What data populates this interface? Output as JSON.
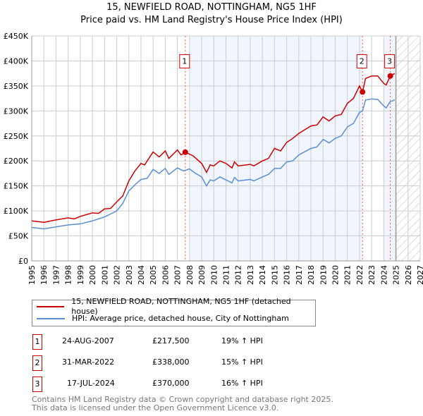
{
  "chart_data": {
    "type": "line",
    "title": "15, NEWFIELD ROAD, NOTTINGHAM, NG5 1HF",
    "subtitle": "Price paid vs. HM Land Registry's House Price Index (HPI)",
    "xlim": [
      1995,
      2027
    ],
    "ylim": [
      0,
      450000
    ],
    "x_ticks": [
      "1995",
      "1996",
      "1997",
      "1998",
      "1999",
      "2000",
      "2001",
      "2002",
      "2003",
      "2004",
      "2005",
      "2006",
      "2007",
      "2008",
      "2009",
      "2010",
      "2011",
      "2012",
      "2013",
      "2014",
      "2015",
      "2016",
      "2017",
      "2018",
      "2019",
      "2020",
      "2021",
      "2022",
      "2023",
      "2024",
      "2025",
      "2026",
      "2027"
    ],
    "y_ticks": [
      {
        "v": 0,
        "l": "£0"
      },
      {
        "v": 50000,
        "l": "£50K"
      },
      {
        "v": 100000,
        "l": "£100K"
      },
      {
        "v": 150000,
        "l": "£150K"
      },
      {
        "v": 200000,
        "l": "£200K"
      },
      {
        "v": 250000,
        "l": "£250K"
      },
      {
        "v": 300000,
        "l": "£300K"
      },
      {
        "v": 350000,
        "l": "£350K"
      },
      {
        "v": 400000,
        "l": "£400K"
      },
      {
        "v": 450000,
        "l": "£450K"
      }
    ],
    "grid": true,
    "series": [
      {
        "name": "15, NEWFIELD ROAD, NOTTINGHAM, NG5 1HF (detached house)",
        "color": "#cc0000",
        "x": [
          1995,
          1996,
          1997,
          1998,
          1998.5,
          1999,
          2000,
          2000.5,
          2001,
          2001.5,
          2002,
          2002.5,
          2003,
          2003.5,
          2004,
          2004.3,
          2005,
          2005.5,
          2006,
          2006.3,
          2007,
          2007.3,
          2007.65,
          2008.3,
          2009,
          2009.4,
          2009.7,
          2010,
          2010.5,
          2011,
          2011.5,
          2011.7,
          2012,
          2013,
          2013.3,
          2014,
          2014.5,
          2015,
          2015.5,
          2016,
          2016.5,
          2017,
          2018,
          2018.5,
          2019,
          2019.5,
          2020,
          2020.5,
          2021,
          2021.5,
          2022,
          2022.25,
          2022.5,
          2023,
          2023.5,
          2024,
          2024.2,
          2024.54,
          2024.9
        ],
        "y": [
          80000,
          77000,
          82000,
          86000,
          84000,
          89000,
          96000,
          95000,
          104000,
          105000,
          118000,
          130000,
          160000,
          180000,
          195000,
          192000,
          218000,
          208000,
          220000,
          205000,
          222000,
          212000,
          217500,
          210000,
          195000,
          177000,
          192000,
          190000,
          200000,
          195000,
          186000,
          198000,
          190000,
          193000,
          190000,
          200000,
          205000,
          225000,
          220000,
          237000,
          245000,
          255000,
          270000,
          272000,
          288000,
          280000,
          290000,
          293000,
          315000,
          325000,
          350000,
          338000,
          365000,
          370000,
          370000,
          355000,
          352000,
          370000,
          375000
        ]
      },
      {
        "name": "HPI: Average price, detached house, City of Nottingham",
        "color": "#5b8fd4",
        "x": [
          1995,
          1996,
          1997,
          1998,
          1999,
          2000,
          2001,
          2002,
          2002.5,
          2003,
          2003.5,
          2004,
          2004.5,
          2005,
          2005.5,
          2006,
          2006.3,
          2007,
          2007.5,
          2008,
          2008.5,
          2009,
          2009.4,
          2009.7,
          2010,
          2010.5,
          2011,
          2011.5,
          2011.7,
          2012,
          2013,
          2013.3,
          2014,
          2014.5,
          2015,
          2015.5,
          2016,
          2016.5,
          2017,
          2018,
          2018.5,
          2019,
          2019.5,
          2020,
          2020.5,
          2021,
          2021.5,
          2022,
          2022.25,
          2022.5,
          2023,
          2023.5,
          2024,
          2024.2,
          2024.5,
          2024.9
        ],
        "y": [
          67000,
          64000,
          68000,
          72000,
          74000,
          80000,
          88000,
          100000,
          115000,
          140000,
          152000,
          163000,
          165000,
          183000,
          175000,
          185000,
          173000,
          186000,
          180000,
          184000,
          175000,
          168000,
          150000,
          162000,
          160000,
          168000,
          162000,
          156000,
          167000,
          160000,
          163000,
          160000,
          168000,
          173000,
          185000,
          185000,
          198000,
          200000,
          212000,
          225000,
          228000,
          243000,
          236000,
          245000,
          250000,
          268000,
          275000,
          297000,
          300000,
          322000,
          324000,
          323000,
          310000,
          306000,
          318000,
          322000
        ]
      }
    ],
    "sales": [
      {
        "label": "1",
        "x": 2007.65,
        "y": 217500,
        "date": "24-AUG-2007",
        "price": "£217,500",
        "hpi": "19% ↑ HPI"
      },
      {
        "label": "2",
        "x": 2022.25,
        "y": 338000,
        "date": "31-MAR-2022",
        "price": "£338,000",
        "hpi": "15% ↑ HPI"
      },
      {
        "label": "3",
        "x": 2024.54,
        "y": 370000,
        "date": "17-JUL-2024",
        "price": "£370,000",
        "hpi": "16% ↑ HPI"
      }
    ],
    "shaded_ranges": [
      [
        2008,
        2022.25
      ],
      [
        2024,
        2025
      ]
    ],
    "forecast_from": 2025,
    "legend": "below"
  },
  "footer": [
    "Contains HM Land Registry data © Crown copyright and database right 2025.",
    "This data is licensed under the Open Government Licence v3.0."
  ]
}
